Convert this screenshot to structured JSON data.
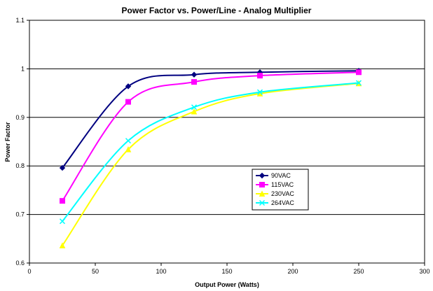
{
  "chart_data": {
    "type": "line",
    "title": "Power Factor vs. Power/Line - Analog Multiplier",
    "xlabel": "Output Power (Watts)",
    "ylabel": "Power Factor",
    "xlim": [
      0,
      300
    ],
    "ylim": [
      0.6,
      1.1
    ],
    "xticks": [
      0,
      50,
      100,
      150,
      200,
      250,
      300
    ],
    "yticks": [
      0.6,
      0.7,
      0.8,
      0.9,
      1,
      1.1
    ],
    "xtick_labels": [
      "0",
      "50",
      "100",
      "150",
      "200",
      "250",
      "300"
    ],
    "ytick_labels": [
      "0.6",
      "0.7",
      "0.8",
      "0.9",
      "1",
      "1.1"
    ],
    "grid": "horizontal major gridlines",
    "legend_position": "right-center inside plot",
    "x": [
      25,
      75,
      125,
      175,
      250
    ],
    "series": [
      {
        "name": "90VAC",
        "values": [
          0.796,
          0.964,
          0.988,
          0.993,
          0.996
        ],
        "color": "#000080",
        "marker": "diamond"
      },
      {
        "name": "115VAC",
        "values": [
          0.728,
          0.932,
          0.973,
          0.986,
          0.993
        ],
        "color": "#ff00ff",
        "marker": "square"
      },
      {
        "name": "230VAC",
        "values": [
          0.636,
          0.834,
          0.912,
          0.949,
          0.97
        ],
        "color": "#ffff00",
        "marker": "triangle"
      },
      {
        "name": "264VAC",
        "values": [
          0.686,
          0.852,
          0.921,
          0.952,
          0.971
        ],
        "color": "#00ffff",
        "marker": "x"
      }
    ]
  }
}
